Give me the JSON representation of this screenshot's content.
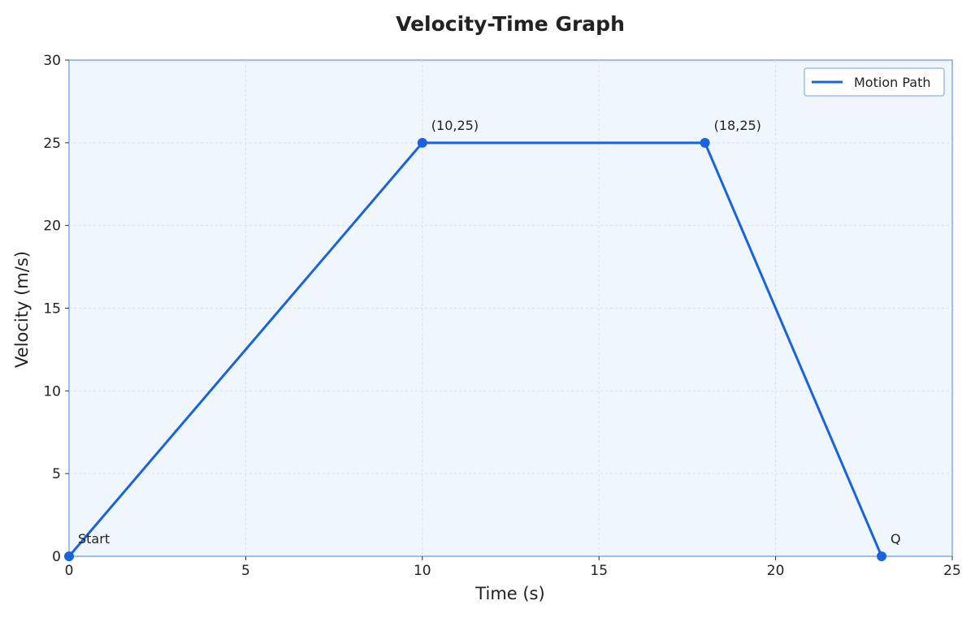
{
  "chart_data": {
    "type": "line",
    "title": "Velocity-Time Graph",
    "xlabel": "Time (s)",
    "ylabel": "Velocity (m/s)",
    "xlim": [
      0,
      25
    ],
    "ylim": [
      0,
      30
    ],
    "xticks": [
      0,
      5,
      10,
      15,
      20,
      25
    ],
    "yticks": [
      0,
      5,
      10,
      15,
      20,
      25,
      30
    ],
    "grid": true,
    "legend_position": "top-right",
    "series": [
      {
        "name": "Motion Path",
        "color": "#1a63e0",
        "points": [
          {
            "x": 0,
            "y": 0,
            "label": "Start"
          },
          {
            "x": 10,
            "y": 25,
            "label": "(10,25)"
          },
          {
            "x": 18,
            "y": 25,
            "label": "(18,25)"
          },
          {
            "x": 23,
            "y": 0,
            "label": "Q"
          }
        ]
      }
    ]
  }
}
